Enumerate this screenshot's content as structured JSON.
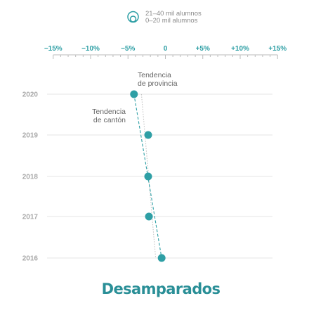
{
  "chart_data": {
    "type": "scatter",
    "title": "Desamparados",
    "legend": {
      "placement": "top-center",
      "size_labels": [
        "21–40 mil alumnos",
        "0–20 mil alumnos"
      ]
    },
    "x_axis": {
      "ticks": [
        -15,
        -10,
        -5,
        0,
        5,
        10,
        15
      ],
      "tick_labels": [
        "−15%",
        "−10%",
        "−5%",
        "0",
        "+5%",
        "+10%",
        "+15%"
      ],
      "range": [
        -15,
        15
      ],
      "unit": "%"
    },
    "y_axis": {
      "categories": [
        "2020",
        "2019",
        "2018",
        "2017",
        "2016"
      ]
    },
    "points": [
      {
        "year": "2020",
        "value": -4.2
      },
      {
        "year": "2019",
        "value": -2.3
      },
      {
        "year": "2018",
        "value": -2.3
      },
      {
        "year": "2017",
        "value": -2.2
      },
      {
        "year": "2016",
        "value": -0.5
      }
    ],
    "trend_lines": [
      {
        "label": "Tendencia de cantón",
        "label_lines": [
          "Tendencia",
          "de cantón"
        ],
        "start": {
          "year": "2020",
          "value": -4.2
        },
        "end": {
          "year": "2016",
          "value": -0.5
        },
        "style": "dashed"
      },
      {
        "label": "Tendencia de provincia",
        "label_lines": [
          "Tendencia",
          "de provincia"
        ],
        "start": {
          "year": "2020",
          "value": -3.2
        },
        "end": {
          "year": "2016",
          "value": -1.3
        },
        "style": "dotted"
      }
    ],
    "grid": true
  },
  "colors": {
    "accent": "#2e9fa5",
    "title": "#2a8f97",
    "grid": "#e6e6e6",
    "axis": "#bbbbbb",
    "province_trend": "#c4c4c4",
    "year_label": "#a9a9a9"
  }
}
